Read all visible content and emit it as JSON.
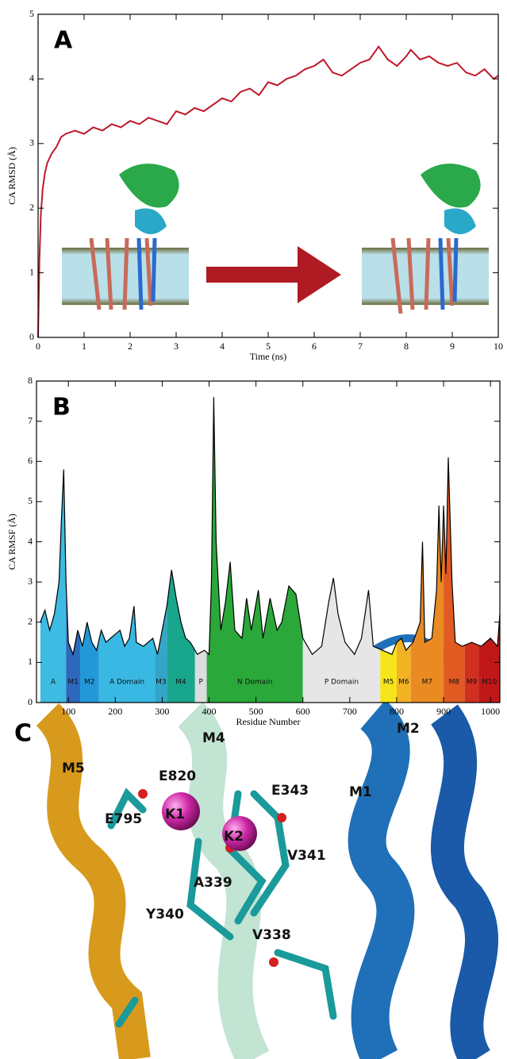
{
  "chart_data": [
    {
      "type": "line",
      "panel": "A",
      "ylabel": "CA RMSD (Å)",
      "xlabel": "Time (ns)",
      "color": "#c0182a",
      "xlim": [
        0,
        10
      ],
      "ylim": [
        0,
        5
      ],
      "xticks": [
        0,
        1,
        2,
        3,
        4,
        5,
        6,
        7,
        8,
        9,
        10
      ],
      "yticks": [
        0,
        1,
        2,
        3,
        4,
        5
      ],
      "x": [
        0,
        0.03,
        0.06,
        0.1,
        0.15,
        0.2,
        0.3,
        0.4,
        0.5,
        0.6,
        0.8,
        1,
        1.2,
        1.4,
        1.6,
        1.8,
        2,
        2.2,
        2.4,
        2.6,
        2.8,
        3,
        3.2,
        3.4,
        3.6,
        3.8,
        4,
        4.2,
        4.4,
        4.6,
        4.8,
        5,
        5.2,
        5.4,
        5.6,
        5.8,
        6,
        6.2,
        6.4,
        6.6,
        6.8,
        7,
        7.2,
        7.4,
        7.6,
        7.8,
        8,
        8.1,
        8.3,
        8.5,
        8.7,
        8.9,
        9.1,
        9.3,
        9.5,
        9.7,
        9.9,
        10
      ],
      "values": [
        0,
        1.2,
        1.9,
        2.3,
        2.55,
        2.7,
        2.85,
        2.95,
        3.1,
        3.15,
        3.2,
        3.15,
        3.25,
        3.2,
        3.3,
        3.25,
        3.35,
        3.3,
        3.4,
        3.35,
        3.3,
        3.5,
        3.45,
        3.55,
        3.5,
        3.6,
        3.7,
        3.65,
        3.8,
        3.85,
        3.75,
        3.95,
        3.9,
        4.0,
        4.05,
        4.15,
        4.2,
        4.3,
        4.1,
        4.05,
        4.15,
        4.25,
        4.3,
        4.5,
        4.3,
        4.2,
        4.35,
        4.45,
        4.3,
        4.35,
        4.25,
        4.2,
        4.25,
        4.1,
        4.05,
        4.15,
        4.0,
        4.05
      ]
    },
    {
      "type": "area",
      "panel": "B",
      "ylabel": "CA RMSF (Å)",
      "xlabel": "Residue Number",
      "color": "#000000",
      "xlim": [
        32,
        1020
      ],
      "ylim": [
        0,
        8
      ],
      "xticks": [
        100,
        200,
        300,
        400,
        500,
        600,
        700,
        800,
        900,
        1000
      ],
      "yticks": [
        0,
        1,
        2,
        3,
        4,
        5,
        6,
        7,
        8
      ],
      "x": [
        40,
        50,
        60,
        70,
        80,
        85,
        90,
        95,
        100,
        110,
        120,
        130,
        140,
        150,
        160,
        170,
        180,
        190,
        200,
        210,
        220,
        230,
        240,
        245,
        260,
        280,
        290,
        300,
        310,
        320,
        330,
        340,
        350,
        360,
        375,
        390,
        400,
        405,
        410,
        415,
        425,
        435,
        445,
        455,
        470,
        480,
        490,
        505,
        515,
        530,
        545,
        555,
        570,
        585,
        600,
        620,
        640,
        655,
        665,
        675,
        690,
        710,
        725,
        740,
        750,
        770,
        790,
        800,
        810,
        820,
        835,
        850,
        855,
        860,
        875,
        885,
        890,
        895,
        900,
        905,
        910,
        918,
        925,
        940,
        960,
        980,
        1000,
        1015,
        1020
      ],
      "values": [
        2.0,
        2.3,
        1.8,
        2.2,
        3.0,
        4.5,
        5.8,
        3.0,
        1.5,
        1.2,
        1.8,
        1.4,
        2.0,
        1.5,
        1.3,
        1.8,
        1.5,
        1.6,
        1.7,
        1.8,
        1.4,
        1.6,
        2.4,
        1.5,
        1.4,
        1.6,
        1.2,
        1.8,
        2.4,
        3.3,
        2.6,
        2.0,
        1.6,
        1.5,
        1.2,
        1.3,
        1.2,
        3.0,
        7.6,
        4.0,
        1.8,
        2.5,
        3.5,
        1.8,
        1.6,
        2.6,
        1.8,
        2.8,
        1.6,
        2.6,
        1.8,
        2.0,
        2.9,
        2.7,
        1.6,
        1.2,
        1.4,
        2.5,
        3.1,
        2.2,
        1.5,
        1.2,
        1.6,
        2.8,
        1.4,
        1.3,
        1.2,
        1.5,
        1.6,
        1.3,
        1.5,
        2.0,
        4.0,
        1.5,
        1.6,
        2.8,
        4.9,
        3.0,
        4.9,
        3.2,
        6.1,
        3.0,
        1.5,
        1.4,
        1.5,
        1.4,
        1.6,
        1.4,
        2.2
      ],
      "regions": [
        {
          "label": "A",
          "start": 40,
          "end": 95,
          "color": "#3dbbe2"
        },
        {
          "label": "M1",
          "start": 95,
          "end": 125,
          "color": "#2c68bb"
        },
        {
          "label": "M2",
          "start": 125,
          "end": 165,
          "color": "#2298d8"
        },
        {
          "label": "A Domain",
          "start": 165,
          "end": 285,
          "color": "#38b8e2"
        },
        {
          "label": "M3",
          "start": 285,
          "end": 310,
          "color": "#33a5c8"
        },
        {
          "label": "M4",
          "start": 310,
          "end": 370,
          "color": "#18a68c"
        },
        {
          "label": "P",
          "start": 370,
          "end": 395,
          "color": "#dddddd"
        },
        {
          "label": "N Domain",
          "start": 395,
          "end": 600,
          "color": "#2aa83a"
        },
        {
          "label": "P Domain",
          "start": 600,
          "end": 765,
          "color": "#e6e6e6"
        },
        {
          "label": "M5",
          "start": 765,
          "end": 800,
          "color": "#f5e51a"
        },
        {
          "label": "M6",
          "start": 800,
          "end": 830,
          "color": "#f2b224"
        },
        {
          "label": "M7",
          "start": 830,
          "end": 900,
          "color": "#e98a22"
        },
        {
          "label": "M8",
          "start": 900,
          "end": 945,
          "color": "#e05a22"
        },
        {
          "label": "M9",
          "start": 945,
          "end": 975,
          "color": "#d03020"
        },
        {
          "label": "M10",
          "start": 975,
          "end": 1020,
          "color": "#c01818"
        }
      ]
    }
  ],
  "panel_c": {
    "label": "C",
    "labels": [
      "M5",
      "M4",
      "M2",
      "M1",
      "E343",
      "E820",
      "E795",
      "K1",
      "K2",
      "V341",
      "A339",
      "Y340",
      "V338"
    ]
  }
}
